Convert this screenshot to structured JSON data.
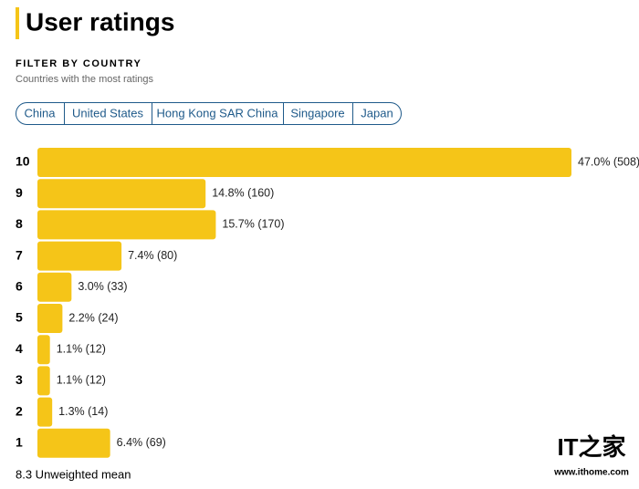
{
  "header": {
    "title": "User ratings"
  },
  "filter": {
    "heading": "FILTER BY COUNTRY",
    "subheading": "Countries with the most ratings",
    "options": [
      "China",
      "United States",
      "Hong Kong SAR China",
      "Singapore",
      "Japan"
    ]
  },
  "chart_data": {
    "type": "bar",
    "orientation": "horizontal",
    "color": "#f5c518",
    "categories": [
      "10",
      "9",
      "8",
      "7",
      "6",
      "5",
      "4",
      "3",
      "2",
      "1"
    ],
    "values": [
      47.0,
      14.8,
      15.7,
      7.4,
      3.0,
      2.2,
      1.1,
      1.1,
      1.3,
      6.4
    ],
    "value_labels": [
      "47.0% (508)",
      "14.8% (160)",
      "15.7% (170)",
      "7.4% (80)",
      "3.0% (33)",
      "2.2% (24)",
      "1.1% (12)",
      "1.1% (12)",
      "1.3% (14)",
      "6.4% (69)"
    ]
  },
  "footer": {
    "text": "8.3 Unweighted mean"
  },
  "watermark": {
    "logo": "IT之家",
    "url": "www.ithome.com"
  }
}
